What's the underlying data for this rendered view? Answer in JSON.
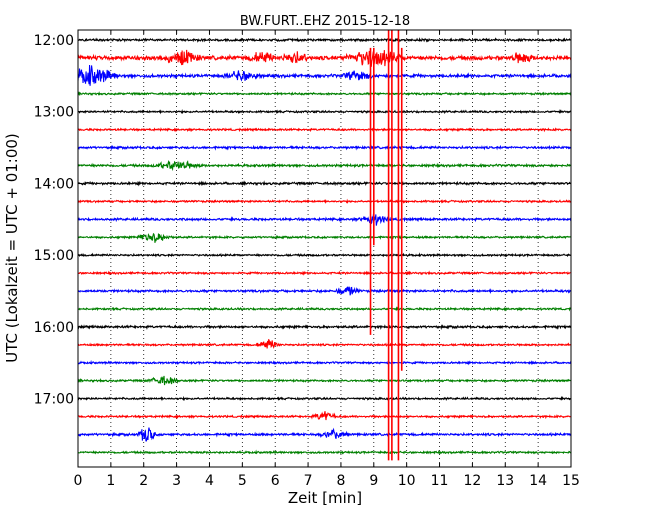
{
  "chart_data": {
    "type": "line",
    "title": "BW.FURT..EHZ 2015-12-18",
    "xlabel": "Zeit  [min]",
    "ylabel": "UTC (Lokalzeit = UTC + 01:00)",
    "xlim": [
      0,
      15
    ],
    "x_ticks": [
      "0",
      "1",
      "2",
      "3",
      "4",
      "5",
      "6",
      "7",
      "8",
      "9",
      "10",
      "11",
      "12",
      "13",
      "14",
      "15"
    ],
    "y_ticks": [
      "12:00",
      "13:00",
      "14:00",
      "15:00",
      "16:00",
      "17:00"
    ],
    "grid": "vertical dotted at each minute",
    "trace_interval_minutes": 15,
    "trace_start": "12:00",
    "trace_end": "17:45",
    "trace_colors": [
      "#000000",
      "#ff0000",
      "#0000ff",
      "#008000"
    ],
    "traces": [
      {
        "start": "12:00",
        "color": "#000000",
        "level": 0.3,
        "bursts": []
      },
      {
        "start": "12:15",
        "color": "#ff0000",
        "level": 0.55,
        "bursts": [
          [
            3.2,
            0.6,
            2.5
          ],
          [
            5.6,
            0.5,
            2.0
          ],
          [
            6.6,
            0.5,
            2.0
          ],
          [
            9.0,
            1.0,
            3.0
          ],
          [
            13.5,
            0.4,
            2.0
          ]
        ]
      },
      {
        "start": "12:30",
        "color": "#0000ff",
        "level": 0.4,
        "bursts": [
          [
            0.4,
            0.9,
            3.0
          ],
          [
            5.0,
            0.6,
            1.8
          ],
          [
            8.5,
            0.5,
            1.8
          ]
        ]
      },
      {
        "start": "12:45",
        "color": "#008000",
        "level": 0.25,
        "bursts": []
      },
      {
        "start": "13:00",
        "color": "#000000",
        "level": 0.25,
        "bursts": []
      },
      {
        "start": "13:15",
        "color": "#ff0000",
        "level": 0.25,
        "bursts": []
      },
      {
        "start": "13:30",
        "color": "#0000ff",
        "level": 0.3,
        "bursts": []
      },
      {
        "start": "13:45",
        "color": "#008000",
        "level": 0.3,
        "bursts": [
          [
            3.0,
            0.8,
            1.5
          ]
        ]
      },
      {
        "start": "14:00",
        "color": "#000000",
        "level": 0.3,
        "bursts": []
      },
      {
        "start": "14:15",
        "color": "#ff0000",
        "level": 0.25,
        "bursts": []
      },
      {
        "start": "14:30",
        "color": "#0000ff",
        "level": 0.3,
        "bursts": [
          [
            9.0,
            0.5,
            1.8
          ]
        ]
      },
      {
        "start": "14:45",
        "color": "#008000",
        "level": 0.25,
        "bursts": [
          [
            2.3,
            0.6,
            1.6
          ]
        ]
      },
      {
        "start": "15:00",
        "color": "#000000",
        "level": 0.25,
        "bursts": []
      },
      {
        "start": "15:15",
        "color": "#ff0000",
        "level": 0.25,
        "bursts": []
      },
      {
        "start": "15:30",
        "color": "#0000ff",
        "level": 0.3,
        "bursts": [
          [
            8.2,
            0.4,
            1.6
          ]
        ]
      },
      {
        "start": "15:45",
        "color": "#008000",
        "level": 0.25,
        "bursts": []
      },
      {
        "start": "16:00",
        "color": "#000000",
        "level": 0.3,
        "bursts": []
      },
      {
        "start": "16:15",
        "color": "#ff0000",
        "level": 0.25,
        "bursts": [
          [
            5.8,
            0.4,
            1.6
          ]
        ]
      },
      {
        "start": "16:30",
        "color": "#0000ff",
        "level": 0.25,
        "bursts": []
      },
      {
        "start": "16:45",
        "color": "#008000",
        "level": 0.25,
        "bursts": [
          [
            2.6,
            0.5,
            1.5
          ]
        ]
      },
      {
        "start": "17:00",
        "color": "#000000",
        "level": 0.25,
        "bursts": []
      },
      {
        "start": "17:15",
        "color": "#ff0000",
        "level": 0.25,
        "bursts": [
          [
            7.5,
            0.4,
            1.6
          ]
        ]
      },
      {
        "start": "17:30",
        "color": "#0000ff",
        "level": 0.3,
        "bursts": [
          [
            2.1,
            0.3,
            3.0
          ],
          [
            7.8,
            0.5,
            1.6
          ]
        ]
      },
      {
        "start": "17:45",
        "color": "#008000",
        "level": 0.25,
        "bursts": []
      }
    ],
    "spikes": [
      {
        "x": 8.9,
        "color": "#ff0000",
        "from_trace": 1,
        "to_trace": 16
      },
      {
        "x": 9.0,
        "color": "#ff0000",
        "from_trace": 1,
        "to_trace": 11
      },
      {
        "x": 9.45,
        "color": "#ff0000",
        "from_trace": 0,
        "to_trace": 23
      },
      {
        "x": 9.55,
        "color": "#ff0000",
        "from_trace": 0,
        "to_trace": 23
      },
      {
        "x": 9.75,
        "color": "#ff0000",
        "from_trace": 0,
        "to_trace": 23
      },
      {
        "x": 9.85,
        "color": "#ff0000",
        "from_trace": 1,
        "to_trace": 18
      }
    ]
  }
}
